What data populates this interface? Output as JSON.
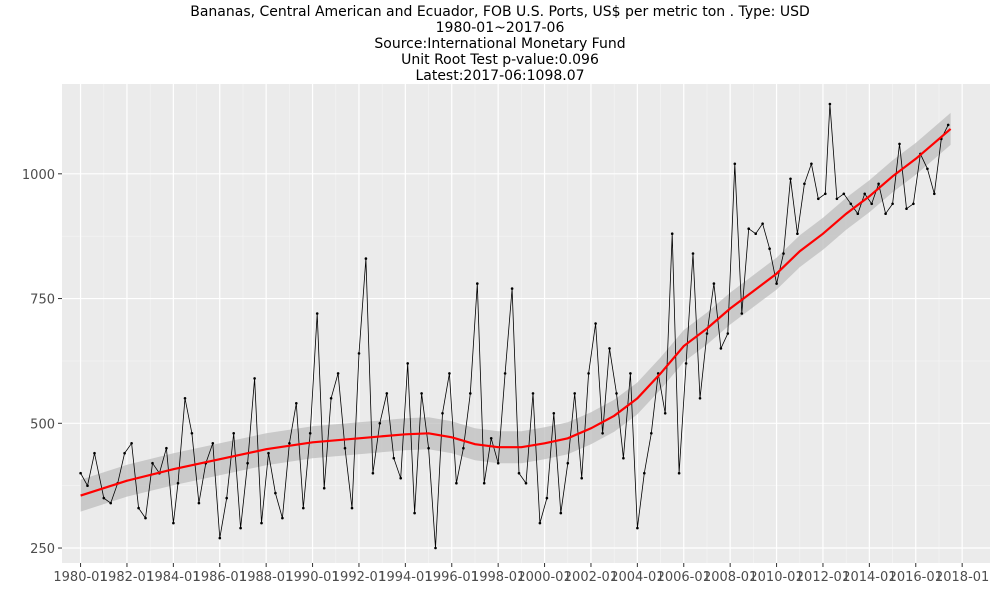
{
  "chart_data": {
    "type": "line",
    "title_lines": [
      "Bananas, Central American and Ecuador, FOB U.S. Ports, US$ per metric ton . Type: USD",
      "1980-01~2017-06",
      "Source:International Monetary Fund",
      "Unit Root Test p-value:0.096",
      "Latest:2017-06:1098.07"
    ],
    "xlabel": "",
    "ylabel": "",
    "x_range": [
      1979.2,
      2019.2
    ],
    "ylim": [
      220,
      1180
    ],
    "y_ticks": [
      250,
      500,
      750,
      1000
    ],
    "x_ticks": [
      {
        "year": 1980,
        "label": "1980-01"
      },
      {
        "year": 1982,
        "label": "1982-01"
      },
      {
        "year": 1984,
        "label": "1984-01"
      },
      {
        "year": 1986,
        "label": "1986-01"
      },
      {
        "year": 1988,
        "label": "1988-01"
      },
      {
        "year": 1990,
        "label": "1990-01"
      },
      {
        "year": 1992,
        "label": "1992-01"
      },
      {
        "year": 1994,
        "label": "1994-01"
      },
      {
        "year": 1996,
        "label": "1996-01"
      },
      {
        "year": 1998,
        "label": "1998-01"
      },
      {
        "year": 2000,
        "label": "2000-01"
      },
      {
        "year": 2002,
        "label": "2002-01"
      },
      {
        "year": 2004,
        "label": "2004-01"
      },
      {
        "year": 2006,
        "label": "2006-01"
      },
      {
        "year": 2008,
        "label": "2008-01"
      },
      {
        "year": 2010,
        "label": "2010-01"
      },
      {
        "year": 2012,
        "label": "2012-01"
      },
      {
        "year": 2014,
        "label": "2014-01"
      },
      {
        "year": 2016,
        "label": "2016-01"
      },
      {
        "year": 2018,
        "label": "2018-01"
      }
    ],
    "grid": true,
    "series": [
      {
        "values": [
          [
            1980.0,
            400
          ],
          [
            1980.3,
            375
          ],
          [
            1980.6,
            440
          ],
          [
            1981.0,
            350
          ],
          [
            1981.3,
            340
          ],
          [
            1981.6,
            380
          ],
          [
            1981.9,
            440
          ],
          [
            1982.2,
            460
          ],
          [
            1982.5,
            330
          ],
          [
            1982.8,
            310
          ],
          [
            1983.1,
            420
          ],
          [
            1983.4,
            400
          ],
          [
            1983.7,
            450
          ],
          [
            1984.0,
            300
          ],
          [
            1984.2,
            380
          ],
          [
            1984.5,
            550
          ],
          [
            1984.8,
            480
          ],
          [
            1985.1,
            340
          ],
          [
            1985.4,
            420
          ],
          [
            1985.7,
            460
          ],
          [
            1986.0,
            270
          ],
          [
            1986.3,
            350
          ],
          [
            1986.6,
            480
          ],
          [
            1986.9,
            290
          ],
          [
            1987.2,
            420
          ],
          [
            1987.5,
            590
          ],
          [
            1987.8,
            300
          ],
          [
            1988.1,
            440
          ],
          [
            1988.4,
            360
          ],
          [
            1988.7,
            310
          ],
          [
            1989.0,
            460
          ],
          [
            1989.3,
            540
          ],
          [
            1989.6,
            330
          ],
          [
            1989.9,
            480
          ],
          [
            1990.2,
            720
          ],
          [
            1990.5,
            370
          ],
          [
            1990.8,
            550
          ],
          [
            1991.1,
            600
          ],
          [
            1991.4,
            450
          ],
          [
            1991.7,
            330
          ],
          [
            1992.0,
            640
          ],
          [
            1992.3,
            830
          ],
          [
            1992.6,
            400
          ],
          [
            1992.9,
            500
          ],
          [
            1993.2,
            560
          ],
          [
            1993.5,
            430
          ],
          [
            1993.8,
            390
          ],
          [
            1994.1,
            620
          ],
          [
            1994.4,
            320
          ],
          [
            1994.7,
            560
          ],
          [
            1995.0,
            450
          ],
          [
            1995.3,
            250
          ],
          [
            1995.6,
            520
          ],
          [
            1995.9,
            600
          ],
          [
            1996.2,
            380
          ],
          [
            1996.5,
            450
          ],
          [
            1996.8,
            560
          ],
          [
            1997.1,
            780
          ],
          [
            1997.4,
            380
          ],
          [
            1997.7,
            470
          ],
          [
            1998.0,
            420
          ],
          [
            1998.3,
            600
          ],
          [
            1998.6,
            770
          ],
          [
            1998.9,
            400
          ],
          [
            1999.2,
            380
          ],
          [
            1999.5,
            560
          ],
          [
            1999.8,
            300
          ],
          [
            2000.1,
            350
          ],
          [
            2000.4,
            520
          ],
          [
            2000.7,
            320
          ],
          [
            2001.0,
            420
          ],
          [
            2001.3,
            560
          ],
          [
            2001.6,
            390
          ],
          [
            2001.9,
            600
          ],
          [
            2002.2,
            700
          ],
          [
            2002.5,
            480
          ],
          [
            2002.8,
            650
          ],
          [
            2003.1,
            560
          ],
          [
            2003.4,
            430
          ],
          [
            2003.7,
            600
          ],
          [
            2004.0,
            290
          ],
          [
            2004.3,
            400
          ],
          [
            2004.6,
            480
          ],
          [
            2004.9,
            600
          ],
          [
            2005.2,
            520
          ],
          [
            2005.5,
            880
          ],
          [
            2005.8,
            400
          ],
          [
            2006.1,
            620
          ],
          [
            2006.4,
            840
          ],
          [
            2006.7,
            550
          ],
          [
            2007.0,
            680
          ],
          [
            2007.3,
            780
          ],
          [
            2007.6,
            650
          ],
          [
            2007.9,
            680
          ],
          [
            2008.2,
            1020
          ],
          [
            2008.5,
            720
          ],
          [
            2008.8,
            890
          ],
          [
            2009.1,
            880
          ],
          [
            2009.4,
            900
          ],
          [
            2009.7,
            850
          ],
          [
            2010.0,
            780
          ],
          [
            2010.3,
            840
          ],
          [
            2010.6,
            990
          ],
          [
            2010.9,
            880
          ],
          [
            2011.2,
            980
          ],
          [
            2011.5,
            1020
          ],
          [
            2011.8,
            950
          ],
          [
            2012.1,
            960
          ],
          [
            2012.3,
            1140
          ],
          [
            2012.6,
            950
          ],
          [
            2012.9,
            960
          ],
          [
            2013.2,
            940
          ],
          [
            2013.5,
            920
          ],
          [
            2013.8,
            960
          ],
          [
            2014.1,
            940
          ],
          [
            2014.4,
            980
          ],
          [
            2014.7,
            920
          ],
          [
            2015.0,
            940
          ],
          [
            2015.3,
            1060
          ],
          [
            2015.6,
            930
          ],
          [
            2015.9,
            940
          ],
          [
            2016.2,
            1040
          ],
          [
            2016.5,
            1010
          ],
          [
            2016.8,
            960
          ],
          [
            2017.1,
            1070
          ],
          [
            2017.4,
            1098.07
          ]
        ]
      },
      {
        "values": [
          [
            1980.0,
            355
          ],
          [
            1982.0,
            385
          ],
          [
            1984.0,
            408
          ],
          [
            1986.0,
            428
          ],
          [
            1988.0,
            448
          ],
          [
            1990.0,
            462
          ],
          [
            1992.0,
            470
          ],
          [
            1994.0,
            478
          ],
          [
            1995.0,
            480
          ],
          [
            1996.0,
            472
          ],
          [
            1997.0,
            458
          ],
          [
            1998.0,
            452
          ],
          [
            1999.0,
            452
          ],
          [
            2000.0,
            460
          ],
          [
            2001.0,
            470
          ],
          [
            2002.0,
            490
          ],
          [
            2003.0,
            515
          ],
          [
            2004.0,
            550
          ],
          [
            2005.0,
            600
          ],
          [
            2006.0,
            655
          ],
          [
            2007.0,
            690
          ],
          [
            2008.0,
            730
          ],
          [
            2009.0,
            765
          ],
          [
            2010.0,
            800
          ],
          [
            2011.0,
            845
          ],
          [
            2012.0,
            880
          ],
          [
            2013.0,
            920
          ],
          [
            2014.0,
            955
          ],
          [
            2015.0,
            995
          ],
          [
            2016.0,
            1030
          ],
          [
            2017.0,
            1070
          ],
          [
            2017.5,
            1090
          ]
        ]
      }
    ]
  }
}
